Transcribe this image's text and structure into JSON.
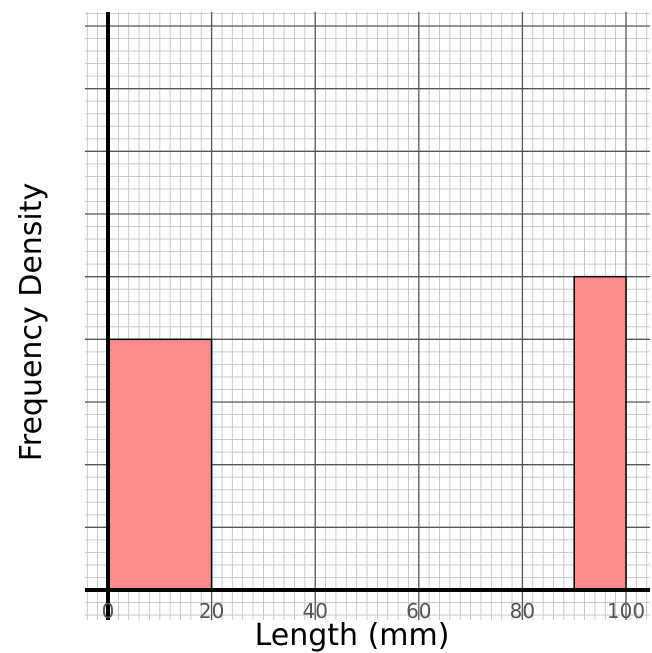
{
  "chart_data": {
    "type": "bar",
    "xlabel": "Length (mm)",
    "ylabel": "Frequency Density",
    "xlim": [
      0,
      100
    ],
    "ylim": [
      0,
      9
    ],
    "x_ticks": [
      "0",
      "20",
      "40",
      "60",
      "80",
      "100"
    ],
    "grid": true,
    "bars": [
      {
        "x_start": 0,
        "x_end": 20,
        "value": 4
      },
      {
        "x_start": 90,
        "x_end": 100,
        "value": 5
      }
    ],
    "colors": {
      "bar_fill": "#fc8d8d",
      "bar_stroke": "#000000",
      "major_grid": "#555555",
      "minor_grid": "#bdbdbd"
    }
  }
}
